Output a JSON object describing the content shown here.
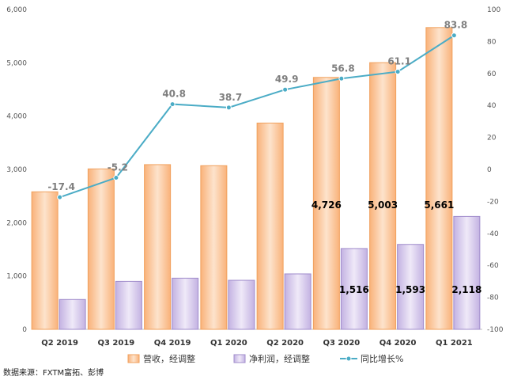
{
  "chart_data": {
    "type": "bar",
    "categories": [
      "Q2 2019",
      "Q3 2019",
      "Q4 2019",
      "Q1 2020",
      "Q2 2020",
      "Q3 2020",
      "Q4 2020",
      "Q1 2021"
    ],
    "series": [
      {
        "name": "营收，经调整",
        "type": "bar",
        "axis": "left",
        "values": [
          2580,
          3010,
          3090,
          3070,
          3870,
          4726,
          5003,
          5661
        ],
        "labels": [
          "",
          "",
          "",
          "",
          "",
          "4,726",
          "5,003",
          "5,661"
        ],
        "color": "#fcd3b0"
      },
      {
        "name": "净利润，经调整",
        "type": "bar",
        "axis": "left",
        "values": [
          560,
          900,
          960,
          920,
          1040,
          1516,
          1593,
          2118
        ],
        "labels": [
          "",
          "",
          "",
          "",
          "",
          "1,516",
          "1,593",
          "2,118"
        ],
        "color": "#ddd2ee"
      },
      {
        "name": "同比增长%",
        "type": "line",
        "axis": "right",
        "values": [
          -17.4,
          -5.2,
          40.8,
          38.7,
          49.9,
          56.8,
          61.1,
          83.8
        ],
        "labels": [
          "-17.4",
          "-5.2",
          "40.8",
          "38.7",
          "49.9",
          "56.8",
          "61.1",
          "83.8"
        ],
        "color": "#4bacc6"
      }
    ],
    "left_axis": {
      "ylim": [
        0,
        6000
      ],
      "ticks": [
        0,
        1000,
        2000,
        3000,
        4000,
        5000,
        6000
      ],
      "tick_labels": [
        "0",
        "1,000",
        "2,000",
        "3,000",
        "4,000",
        "5,000",
        "6,000"
      ]
    },
    "right_axis": {
      "ylim": [
        -100,
        100
      ],
      "ticks": [
        -100,
        -80,
        -60,
        -40,
        -20,
        0,
        20,
        40,
        60,
        80,
        100
      ],
      "tick_labels": [
        "-100",
        "-80",
        "-60",
        "-40",
        "-20",
        "0",
        "20",
        "40",
        "60",
        "80",
        "100"
      ]
    },
    "grid": false,
    "legend_position": "bottom"
  },
  "source_note": "数据来源：FXTM富拓、彭博"
}
